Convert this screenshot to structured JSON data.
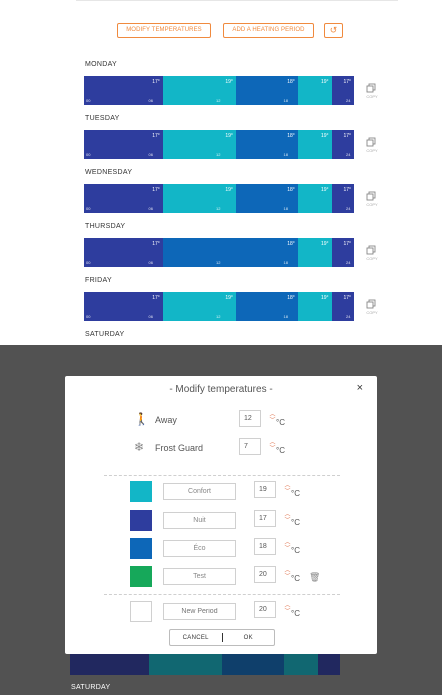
{
  "toolbar": {
    "modify_label": "MODIFY TEMPERATURES",
    "add_label": "ADD A HEATING PERIOD",
    "undo_glyph": "↺"
  },
  "colors": {
    "accent": "#f08a3e",
    "nuit": "#2e3d9e",
    "confort": "#12b6c7",
    "eco": "#0d67b8",
    "test": "#16a85a",
    "new_period": "#e8e8e8"
  },
  "days": [
    {
      "label": "MONDAY",
      "ticks": [
        "00",
        "06",
        "12",
        "18",
        "24"
      ],
      "segments": [
        {
          "mode": "Nuit",
          "color": "#2e3d9e",
          "end_hour": 7,
          "temp": "17°"
        },
        {
          "mode": "Confort",
          "color": "#12b6c7",
          "end_hour": 13.5,
          "temp": "19°"
        },
        {
          "mode": "Éco",
          "color": "#0d67b8",
          "end_hour": 19,
          "temp": "18°"
        },
        {
          "mode": "Confort",
          "color": "#12b6c7",
          "end_hour": 22,
          "temp": "19°"
        },
        {
          "mode": "Nuit",
          "color": "#2e3d9e",
          "end_hour": 24,
          "temp": "17°"
        }
      ]
    },
    {
      "label": "TUESDAY",
      "ticks": [
        "00",
        "06",
        "12",
        "18",
        "24"
      ],
      "segments": [
        {
          "mode": "Nuit",
          "color": "#2e3d9e",
          "end_hour": 7,
          "temp": "17°"
        },
        {
          "mode": "Confort",
          "color": "#12b6c7",
          "end_hour": 13.5,
          "temp": "19°"
        },
        {
          "mode": "Éco",
          "color": "#0d67b8",
          "end_hour": 19,
          "temp": "18°"
        },
        {
          "mode": "Confort",
          "color": "#12b6c7",
          "end_hour": 22,
          "temp": "19°"
        },
        {
          "mode": "Nuit",
          "color": "#2e3d9e",
          "end_hour": 24,
          "temp": "17°"
        }
      ]
    },
    {
      "label": "WEDNESDAY",
      "ticks": [
        "00",
        "06",
        "12",
        "18",
        "24"
      ],
      "segments": [
        {
          "mode": "Nuit",
          "color": "#2e3d9e",
          "end_hour": 7,
          "temp": "17°"
        },
        {
          "mode": "Confort",
          "color": "#12b6c7",
          "end_hour": 13.5,
          "temp": "19°"
        },
        {
          "mode": "Éco",
          "color": "#0d67b8",
          "end_hour": 19,
          "temp": "18°"
        },
        {
          "mode": "Confort",
          "color": "#12b6c7",
          "end_hour": 22,
          "temp": "19°"
        },
        {
          "mode": "Nuit",
          "color": "#2e3d9e",
          "end_hour": 24,
          "temp": "17°"
        }
      ]
    },
    {
      "label": "THURSDAY",
      "ticks": [
        "00",
        "06",
        "12",
        "18",
        "24"
      ],
      "segments": [
        {
          "mode": "Nuit",
          "color": "#2e3d9e",
          "end_hour": 7,
          "temp": "17°"
        },
        {
          "mode": "Éco",
          "color": "#0d67b8",
          "end_hour": 19,
          "temp": "18°"
        },
        {
          "mode": "Confort",
          "color": "#12b6c7",
          "end_hour": 22,
          "temp": "19°"
        },
        {
          "mode": "Nuit",
          "color": "#2e3d9e",
          "end_hour": 24,
          "temp": "17°"
        }
      ]
    },
    {
      "label": "FRIDAY",
      "ticks": [
        "00",
        "06",
        "12",
        "18",
        "24"
      ],
      "segments": [
        {
          "mode": "Nuit",
          "color": "#2e3d9e",
          "end_hour": 7,
          "temp": "17°"
        },
        {
          "mode": "Confort",
          "color": "#12b6c7",
          "end_hour": 13.5,
          "temp": "19°"
        },
        {
          "mode": "Éco",
          "color": "#0d67b8",
          "end_hour": 19,
          "temp": "18°"
        },
        {
          "mode": "Confort",
          "color": "#12b6c7",
          "end_hour": 22,
          "temp": "19°"
        },
        {
          "mode": "Nuit",
          "color": "#2e3d9e",
          "end_hour": 24,
          "temp": "17°"
        }
      ]
    }
  ],
  "copy_label": "COPY",
  "saturday_label": "SATURDAY",
  "modal": {
    "title": "- Modify temperatures -",
    "close_glyph": "×",
    "unit": "°C",
    "arrow_up": "︿",
    "arrow_down": "﹀",
    "fixed_modes": [
      {
        "icon": "walking-person-icon",
        "glyph": "🚶",
        "label": "Away",
        "value": "12"
      },
      {
        "icon": "snowflake-icon",
        "glyph": "❄",
        "label": "Frost Guard",
        "value": "7"
      }
    ],
    "periods": [
      {
        "name": "Confort",
        "color": "#12b6c7",
        "value": "19",
        "deletable": false
      },
      {
        "name": "Nuit",
        "color": "#2e3d9e",
        "value": "17",
        "deletable": false
      },
      {
        "name": "Éco",
        "color": "#0d67b8",
        "value": "18",
        "deletable": false
      },
      {
        "name": "Test",
        "color": "#16a85a",
        "value": "20",
        "deletable": true
      }
    ],
    "new_period": {
      "placeholder": "New Period",
      "color": "#e8e8e8",
      "value": "20"
    },
    "trash_glyph": "🗑",
    "cancel_label": "CANCEL",
    "ok_label": "OK"
  },
  "bottom_day_label": "SATURDAY"
}
